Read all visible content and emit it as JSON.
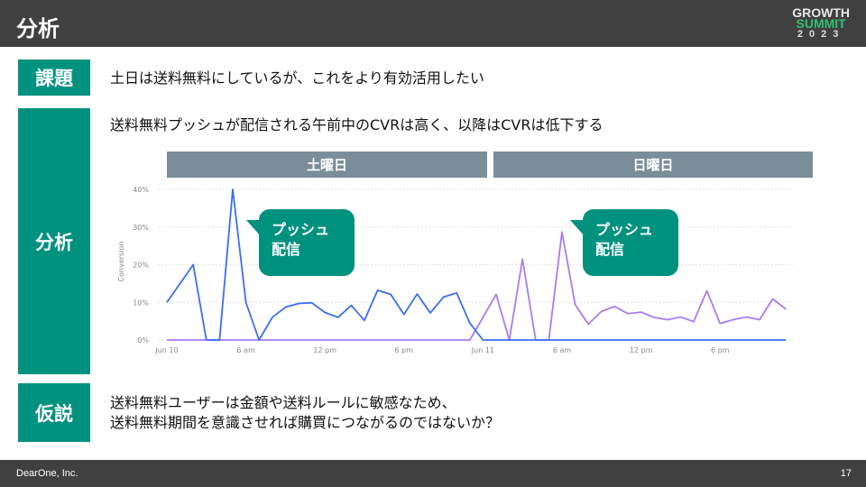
{
  "header": {
    "title": "分析",
    "logo": {
      "line1": "GROWTH",
      "line2": "SUMMIT",
      "line3": "2023"
    }
  },
  "footer": {
    "company": "DearOne, Inc.",
    "page": "17"
  },
  "sections": {
    "issue": {
      "label": "課題",
      "text": "土日は送料無料にしているが、これをより有効活用したい"
    },
    "analysis": {
      "label": "分析",
      "text": "送料無料プッシュが配信される午前中のCVRは高く、以降はCVRは低下する"
    },
    "hypothesis": {
      "label": "仮説",
      "line1": "送料無料ユーザーは金額や送料ルールに敏感なため、",
      "line2": "送料無料期間を意識させれば購買につながるのではないか？"
    }
  },
  "day_headers": [
    "土曜日",
    "日曜日"
  ],
  "callouts": [
    {
      "line1": "プッシュ",
      "line2": "配信"
    },
    {
      "line1": "プッシュ",
      "line2": "配信"
    }
  ],
  "chart_data": {
    "type": "line",
    "ylabel": "Conversion",
    "ylim": [
      0,
      40
    ],
    "yticks": [
      "0%",
      "10%",
      "20%",
      "30%",
      "40%"
    ],
    "xticks": [
      {
        "hour": 0,
        "label": "Jun 10"
      },
      {
        "hour": 6,
        "label": "6 am"
      },
      {
        "hour": 12,
        "label": "12 pm"
      },
      {
        "hour": 18,
        "label": "6 pm"
      },
      {
        "hour": 24,
        "label": "Jun 11"
      },
      {
        "hour": 30,
        "label": "6 am"
      },
      {
        "hour": 36,
        "label": "12 pm"
      },
      {
        "hour": 42,
        "label": "6 pm"
      }
    ],
    "grid": true,
    "x_unit": "hour from Jun 10 0:00",
    "series": [
      {
        "color": "#3b6ff0",
        "values": [
          10,
          15,
          20,
          0,
          0,
          40,
          10,
          0,
          6,
          8.7,
          9.7,
          9.9,
          7.3,
          6,
          9.2,
          5.2,
          13.2,
          12.1,
          6.8,
          12.2,
          7.2,
          11.4,
          12.5,
          4.5,
          0,
          0,
          0,
          0,
          0,
          0,
          0,
          0,
          0,
          0,
          0,
          0,
          0,
          0,
          0,
          0,
          0,
          0,
          0,
          0,
          0,
          0,
          0,
          0
        ]
      },
      {
        "color": "#a77cf5",
        "values": [
          0,
          0,
          0,
          0,
          0,
          0,
          0,
          0,
          0,
          0,
          0,
          0,
          0,
          0,
          0,
          0,
          0,
          0,
          0,
          0,
          0,
          0,
          0,
          0,
          6,
          12.1,
          0,
          21.5,
          0,
          0,
          28.7,
          9.4,
          4.2,
          7.6,
          8.9,
          7,
          7.4,
          6,
          5.4,
          6.1,
          4.9,
          13.1,
          4.4,
          5.4,
          6.1,
          5.4,
          10.9,
          8.2
        ]
      }
    ]
  }
}
